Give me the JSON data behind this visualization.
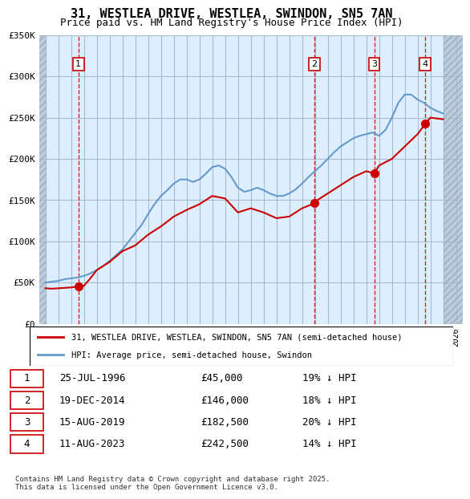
{
  "title": "31, WESTLEA DRIVE, WESTLEA, SWINDON, SN5 7AN",
  "subtitle": "Price paid vs. HM Land Registry's House Price Index (HPI)",
  "legend_line1": "31, WESTLEA DRIVE, WESTLEA, SWINDON, SN5 7AN (semi-detached house)",
  "legend_line2": "HPI: Average price, semi-detached house, Swindon",
  "footer": "Contains HM Land Registry data © Crown copyright and database right 2025.\nThis data is licensed under the Open Government Licence v3.0.",
  "hpi_color": "#6699cc",
  "price_color": "#cc0000",
  "transaction_color": "#cc0000",
  "vline_color": "#cc0000",
  "background_color": "#ddeeff",
  "hatch_color": "#bbccdd",
  "grid_color": "#aabbcc",
  "transactions": [
    {
      "date": 1996.57,
      "price": 45000,
      "label": "1"
    },
    {
      "date": 2014.96,
      "price": 146000,
      "label": "2"
    },
    {
      "date": 2019.62,
      "price": 182500,
      "label": "3"
    },
    {
      "date": 2023.61,
      "price": 242500,
      "label": "4"
    }
  ],
  "table_rows": [
    {
      "num": "1",
      "date": "25-JUL-1996",
      "price": "£45,000",
      "note": "19% ↓ HPI"
    },
    {
      "num": "2",
      "date": "19-DEC-2014",
      "price": "£146,000",
      "note": "18% ↓ HPI"
    },
    {
      "num": "3",
      "date": "15-AUG-2019",
      "price": "£182,500",
      "note": "20% ↓ HPI"
    },
    {
      "num": "4",
      "date": "11-AUG-2023",
      "price": "£242,500",
      "note": "14% ↓ HPI"
    }
  ],
  "ylim": [
    0,
    350000
  ],
  "xlim": [
    1993.5,
    2026.5
  ],
  "yticks": [
    0,
    50000,
    100000,
    150000,
    200000,
    250000,
    300000,
    350000
  ],
  "ytick_labels": [
    "£0",
    "£50K",
    "£100K",
    "£150K",
    "£200K",
    "£250K",
    "£300K",
    "£350K"
  ],
  "hpi_x": [
    1994,
    1994.5,
    1995,
    1995.5,
    1996,
    1996.5,
    1997,
    1997.5,
    1998,
    1998.5,
    1999,
    1999.5,
    2000,
    2000.5,
    2001,
    2001.5,
    2002,
    2002.5,
    2003,
    2003.5,
    2004,
    2004.5,
    2005,
    2005.5,
    2006,
    2006.5,
    2007,
    2007.5,
    2008,
    2008.5,
    2009,
    2009.5,
    2010,
    2010.5,
    2011,
    2011.5,
    2012,
    2012.5,
    2013,
    2013.5,
    2014,
    2014.5,
    2015,
    2015.5,
    2016,
    2016.5,
    2017,
    2017.5,
    2018,
    2018.5,
    2019,
    2019.5,
    2020,
    2020.5,
    2021,
    2021.5,
    2022,
    2022.5,
    2023,
    2023.5,
    2024,
    2024.5,
    2025
  ],
  "hpi_y": [
    50000,
    51000,
    52000,
    54000,
    55000,
    56000,
    58000,
    61000,
    65000,
    70000,
    76000,
    83000,
    90000,
    100000,
    110000,
    120000,
    133000,
    145000,
    155000,
    162000,
    170000,
    175000,
    175000,
    172000,
    175000,
    182000,
    190000,
    192000,
    188000,
    178000,
    165000,
    160000,
    162000,
    165000,
    162000,
    158000,
    155000,
    155000,
    158000,
    163000,
    170000,
    178000,
    185000,
    192000,
    200000,
    208000,
    215000,
    220000,
    225000,
    228000,
    230000,
    232000,
    228000,
    235000,
    250000,
    268000,
    278000,
    278000,
    272000,
    268000,
    262000,
    258000,
    255000
  ],
  "price_x": [
    1994,
    1994.5,
    1995,
    1995.5,
    1996,
    1996.5,
    1997,
    1997.5,
    1998,
    1999,
    2000,
    2001,
    2002,
    2003,
    2004,
    2005,
    2006,
    2007,
    2008,
    2009,
    2010,
    2011,
    2012,
    2013,
    2014,
    2014.96,
    2015,
    2016,
    2017,
    2018,
    2019,
    2019.62,
    2020,
    2021,
    2022,
    2023,
    2023.61,
    2024,
    2025
  ],
  "price_y": [
    43000,
    42500,
    43000,
    43500,
    44000,
    45000,
    46000,
    55000,
    65000,
    75000,
    88000,
    95000,
    108000,
    118000,
    130000,
    138000,
    145000,
    155000,
    152000,
    135000,
    140000,
    135000,
    128000,
    130000,
    140000,
    146000,
    148000,
    158000,
    168000,
    178000,
    185000,
    182500,
    192000,
    200000,
    215000,
    230000,
    242500,
    250000,
    248000
  ]
}
